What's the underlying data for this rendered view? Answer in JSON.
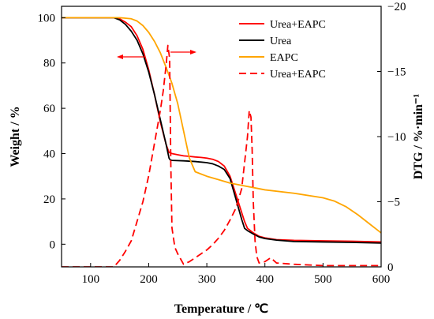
{
  "chart_data": {
    "type": "line",
    "xlabel": "Temperature / ℃",
    "ylabel_left": "Weight / %",
    "ylabel_right": "DTG / %·min⁻¹",
    "xlim": [
      50,
      600
    ],
    "ylim_left": [
      -10,
      105
    ],
    "ylim_right": [
      0,
      -20
    ],
    "x_ticks": [
      100,
      200,
      300,
      400,
      500,
      600
    ],
    "y_left_ticks": [
      0,
      20,
      40,
      60,
      80,
      100
    ],
    "y_right_ticks": [
      0,
      -5,
      -10,
      -15,
      -20
    ],
    "grid": false,
    "legend_position": "top-right",
    "legend": [
      {
        "label": "Urea+EAPC",
        "color": "#ff0000",
        "style": "solid"
      },
      {
        "label": "Urea",
        "color": "#000000",
        "style": "solid"
      },
      {
        "label": "EAPC",
        "color": "#ffa500",
        "style": "solid"
      },
      {
        "label": "Urea+EAPC",
        "color": "#ff0000",
        "style": "dashed"
      }
    ],
    "series": [
      {
        "axis": "left",
        "color": "#ff0000",
        "style": "solid",
        "x": [
          50,
          140,
          150,
          160,
          170,
          180,
          190,
          200,
          210,
          220,
          230,
          235,
          240,
          250,
          260,
          270,
          280,
          290,
          300,
          310,
          320,
          330,
          340,
          350,
          360,
          365,
          370,
          380,
          390,
          400,
          420,
          450,
          500,
          550,
          600
        ],
        "y": [
          100,
          100,
          99.5,
          98,
          96,
          92,
          86,
          77,
          66,
          54,
          44,
          40.5,
          40,
          39.5,
          39,
          38.8,
          38.5,
          38.3,
          38,
          37.5,
          36.5,
          34.5,
          30,
          22,
          14,
          10,
          7,
          5,
          3.5,
          2.8,
          2,
          1.7,
          1.5,
          1.3,
          1
        ]
      },
      {
        "axis": "left",
        "color": "#000000",
        "style": "solid",
        "x": [
          50,
          140,
          150,
          160,
          170,
          180,
          190,
          200,
          210,
          220,
          230,
          235,
          237,
          240,
          260,
          280,
          300,
          310,
          320,
          330,
          340,
          350,
          360,
          365,
          370,
          380,
          390,
          400,
          420,
          450,
          500,
          550,
          600
        ],
        "y": [
          100,
          100,
          99,
          97,
          94,
          90,
          84,
          76,
          66,
          55,
          44,
          38,
          37.2,
          37,
          36.8,
          36.5,
          36,
          35.5,
          34.5,
          33,
          29,
          20,
          11,
          7,
          6,
          4.5,
          3.2,
          2.5,
          1.8,
          1.2,
          1,
          0.8,
          0.5
        ]
      },
      {
        "axis": "left",
        "color": "#ffa500",
        "style": "solid",
        "x": [
          50,
          150,
          170,
          180,
          190,
          200,
          210,
          220,
          230,
          240,
          250,
          260,
          270,
          280,
          290,
          300,
          320,
          340,
          360,
          380,
          400,
          450,
          500,
          520,
          540,
          560,
          580,
          600
        ],
        "y": [
          100,
          100,
          99.5,
          98.5,
          96.5,
          93.5,
          89.5,
          84.5,
          78,
          71,
          62,
          50,
          38,
          32,
          31,
          30,
          28.5,
          27,
          26,
          25,
          24,
          22.5,
          20.5,
          19,
          16.5,
          13,
          9,
          5
        ]
      },
      {
        "axis": "right",
        "color": "#ff0000",
        "style": "dashed",
        "x": [
          50,
          140,
          150,
          160,
          170,
          180,
          190,
          200,
          210,
          220,
          225,
          230,
          233,
          236,
          238,
          240,
          245,
          250,
          260,
          270,
          280,
          290,
          300,
          310,
          320,
          330,
          340,
          350,
          360,
          365,
          370,
          373,
          376,
          378,
          380,
          383,
          386,
          390,
          400,
          410,
          420,
          450,
          500,
          600
        ],
        "y": [
          0,
          0,
          -0.5,
          -1.2,
          -2,
          -3.5,
          -5,
          -7,
          -9.5,
          -12,
          -13.5,
          -15.5,
          -17,
          -16,
          -8,
          -3,
          -1.5,
          -1,
          -0.2,
          -0.4,
          -0.7,
          -1,
          -1.3,
          -1.7,
          -2.2,
          -2.8,
          -3.6,
          -4.5,
          -6,
          -8,
          -10,
          -12,
          -11.5,
          -9,
          -5,
          -2,
          -0.8,
          -0.3,
          -0.4,
          -0.7,
          -0.3,
          -0.2,
          -0.1,
          -0.1
        ]
      }
    ]
  }
}
